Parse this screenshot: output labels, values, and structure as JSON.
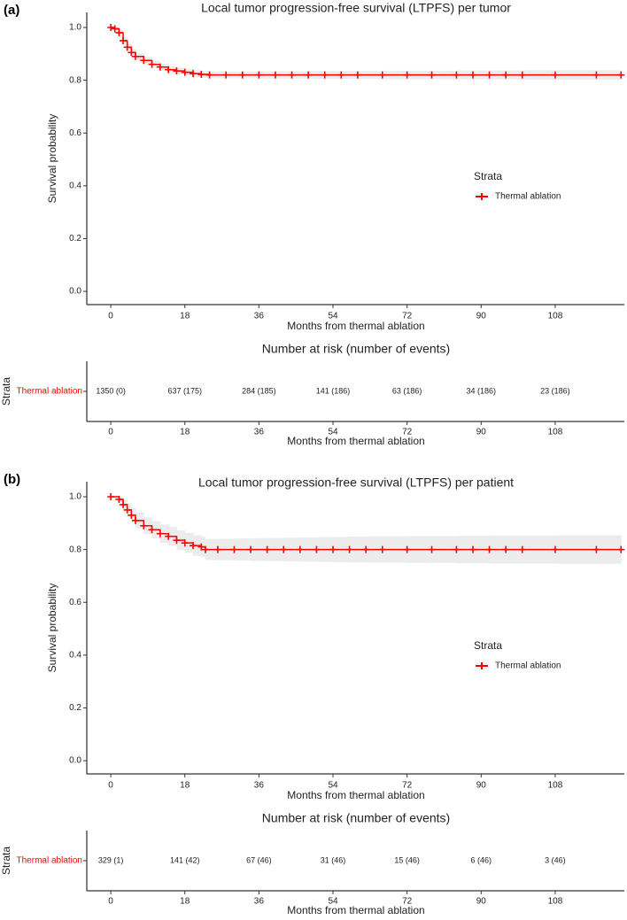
{
  "chart_data": [
    {
      "type": "line",
      "panel_label": "(a)",
      "title": "Local tumor progression-free survival (LTPFS) per tumor",
      "xlabel": "Months from thermal ablation",
      "ylabel": "Survival probability",
      "xlim": [
        -5.4,
        124.8
      ],
      "ylim": [
        -0.05,
        1.057
      ],
      "xticks": [
        0,
        18,
        36,
        54,
        72,
        90,
        108
      ],
      "yticks": [
        {
          "value": 0,
          "label": "0.0"
        },
        0.2,
        0.4,
        0.6,
        0.8,
        {
          "value": 1,
          "label": "1.0"
        }
      ],
      "legend_title": "Strata",
      "legend": "right",
      "markers": true,
      "x": [
        0,
        1,
        2,
        3,
        4,
        5,
        6,
        8,
        10,
        12,
        14,
        16,
        18,
        20,
        22,
        24,
        28,
        32,
        36,
        40,
        44,
        48,
        52,
        56,
        60,
        66,
        72,
        78,
        84,
        88,
        92,
        96,
        100,
        108,
        118,
        124
      ],
      "series": [
        {
          "name": "Thermal ablation",
          "color": "#ff0000",
          "values": [
            1.0,
            0.995,
            0.98,
            0.95,
            0.925,
            0.905,
            0.89,
            0.875,
            0.86,
            0.85,
            0.84,
            0.835,
            0.83,
            0.825,
            0.822,
            0.82,
            0.82,
            0.82,
            0.82,
            0.82,
            0.82,
            0.82,
            0.82,
            0.82,
            0.82,
            0.82,
            0.82,
            0.82,
            0.82,
            0.82,
            0.82,
            0.82,
            0.82,
            0.82,
            0.82,
            0.82
          ],
          "ci_upper": [
            1.0,
            1.0,
            0.99,
            0.962,
            0.938,
            0.918,
            0.903,
            0.888,
            0.873,
            0.863,
            0.853,
            0.848,
            0.843,
            0.838,
            0.835,
            0.833,
            0.833,
            0.833,
            0.834,
            0.834,
            0.834,
            0.835,
            0.835,
            0.835,
            0.835,
            0.836,
            0.836,
            0.836,
            0.837,
            0.837,
            0.837,
            0.837,
            0.838,
            0.838,
            0.838,
            0.838
          ],
          "ci_lower": [
            1.0,
            0.99,
            0.97,
            0.938,
            0.912,
            0.892,
            0.877,
            0.862,
            0.847,
            0.837,
            0.827,
            0.822,
            0.817,
            0.812,
            0.809,
            0.807,
            0.807,
            0.807,
            0.806,
            0.806,
            0.806,
            0.805,
            0.805,
            0.805,
            0.805,
            0.804,
            0.804,
            0.804,
            0.803,
            0.803,
            0.803,
            0.803,
            0.802,
            0.802,
            0.802,
            0.802
          ]
        }
      ],
      "risk_table": {
        "title": "Number at risk (number of events)",
        "ylabel": "Strata",
        "strata": "Thermal ablation",
        "xlabel": "Months from thermal ablation",
        "xlim": [
          -5.4,
          124.8
        ],
        "xticks": [
          0,
          18,
          36,
          54,
          72,
          90,
          108
        ],
        "cells": [
          "1350 (0)",
          "637 (175)",
          "284 (185)",
          "141 (186)",
          "63 (186)",
          "34 (186)",
          "23 (186)"
        ]
      }
    },
    {
      "type": "line",
      "panel_label": "(b)",
      "title": "Local tumor progression-free survival (LTPFS) per patient",
      "xlabel": "Months from thermal ablation",
      "ylabel": "Survival probability",
      "xlim": [
        -5.4,
        124.8
      ],
      "ylim": [
        -0.05,
        1.057
      ],
      "xticks": [
        0,
        18,
        36,
        54,
        72,
        90,
        108
      ],
      "yticks": [
        {
          "value": 0,
          "label": "0.0"
        },
        0.2,
        0.4,
        0.6,
        0.8,
        {
          "value": 1,
          "label": "1.0"
        }
      ],
      "legend_title": "Strata",
      "legend": "right",
      "markers": true,
      "x": [
        0,
        2,
        3,
        4,
        5,
        6,
        8,
        10,
        12,
        14,
        16,
        18,
        20,
        22,
        23,
        26,
        30,
        34,
        38,
        42,
        46,
        50,
        54,
        58,
        62,
        66,
        72,
        78,
        84,
        88,
        92,
        96,
        100,
        108,
        118,
        124
      ],
      "series": [
        {
          "name": "Thermal ablation",
          "color": "#ff0000",
          "values": [
            1.0,
            0.99,
            0.97,
            0.95,
            0.93,
            0.91,
            0.89,
            0.875,
            0.86,
            0.85,
            0.835,
            0.825,
            0.815,
            0.81,
            0.8,
            0.8,
            0.8,
            0.8,
            0.8,
            0.8,
            0.8,
            0.8,
            0.8,
            0.8,
            0.8,
            0.8,
            0.8,
            0.8,
            0.8,
            0.8,
            0.8,
            0.8,
            0.8,
            0.8,
            0.8,
            0.8
          ],
          "ci_upper": [
            1.0,
            1.0,
            0.99,
            0.975,
            0.958,
            0.94,
            0.922,
            0.908,
            0.895,
            0.886,
            0.872,
            0.863,
            0.854,
            0.849,
            0.84,
            0.841,
            0.842,
            0.843,
            0.844,
            0.845,
            0.846,
            0.847,
            0.848,
            0.849,
            0.85,
            0.85,
            0.851,
            0.851,
            0.852,
            0.852,
            0.853,
            0.853,
            0.853,
            0.854,
            0.854,
            0.854
          ],
          "ci_lower": [
            1.0,
            0.98,
            0.95,
            0.925,
            0.902,
            0.88,
            0.858,
            0.842,
            0.825,
            0.814,
            0.798,
            0.787,
            0.776,
            0.771,
            0.76,
            0.759,
            0.758,
            0.757,
            0.756,
            0.755,
            0.754,
            0.753,
            0.752,
            0.751,
            0.75,
            0.75,
            0.749,
            0.749,
            0.748,
            0.748,
            0.747,
            0.747,
            0.747,
            0.746,
            0.746,
            0.746
          ]
        }
      ],
      "risk_table": {
        "title": "Number at risk (number of events)",
        "ylabel": "Strata",
        "strata": "Thermal ablation",
        "xlabel": "Months from thermal ablation",
        "xlim": [
          -5.4,
          124.8
        ],
        "xticks": [
          0,
          18,
          36,
          54,
          72,
          90,
          108
        ],
        "cells": [
          "329 (1)",
          "141 (42)",
          "67 (46)",
          "31 (46)",
          "15 (46)",
          "6 (46)",
          "3 (46)"
        ]
      }
    }
  ]
}
